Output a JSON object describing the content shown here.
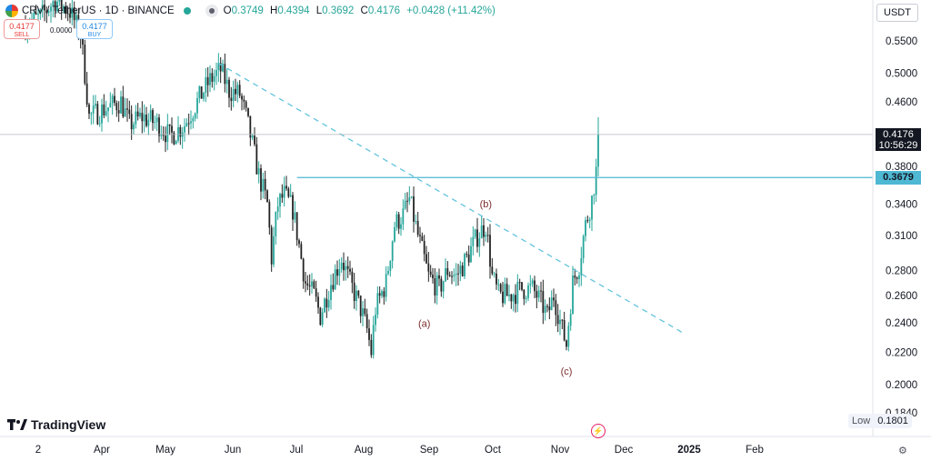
{
  "header": {
    "symbol": "CRV / TetherUS · 1D · BINANCE",
    "ohlc": [
      {
        "k": "O",
        "v": "0.3749"
      },
      {
        "k": "H",
        "v": "0.4394"
      },
      {
        "k": "L",
        "v": "0.3692"
      },
      {
        "k": "C",
        "v": "0.4176"
      }
    ],
    "change": "+0.0428 (+11.42%)"
  },
  "trade": {
    "sell_price": "0.4177",
    "sell_label": "SELL",
    "spread": "0.0000",
    "buy_price": "0.4177",
    "buy_label": "BUY"
  },
  "currency": "USDT",
  "brand": "TradingView",
  "colors": {
    "up": "#26a69a",
    "down": "#222222",
    "level_line": "#4fb8d3",
    "trendline": "#63c3dc",
    "price_tag": "#131722"
  },
  "chart_data": {
    "type": "candlestick",
    "y_scale": "log",
    "ylim": [
      0.175,
      0.62
    ],
    "y_ticks": [
      "0.5500",
      "0.5000",
      "0.4600",
      "0.3800",
      "0.3400",
      "0.3100",
      "0.2800",
      "0.2600",
      "0.2400",
      "0.2200",
      "0.2000",
      "0.1840"
    ],
    "x_ticks": [
      "2",
      "Apr",
      "May",
      "Jun",
      "Jul",
      "Aug",
      "Sep",
      "Oct",
      "Nov",
      "Dec",
      "2025",
      "Feb"
    ],
    "last_price": "0.4176",
    "countdown": "10:56:29",
    "horizontal_level": "0.3679",
    "low_label": "Low",
    "low_value": "0.1801",
    "trendline": {
      "from": [
        "2024-05-26",
        0.515
      ],
      "to": [
        "2025-01-01",
        0.232
      ]
    },
    "wave_labels": [
      {
        "text": "(a)",
        "date": "2024-08-31",
        "price": 0.237
      },
      {
        "text": "(b)",
        "date": "2024-09-29",
        "price": 0.337
      },
      {
        "text": "(c)",
        "date": "2024-11-06",
        "price": 0.206
      }
    ],
    "path": [
      [
        "2024-02-24",
        0.575
      ],
      [
        "2024-03-03",
        0.59
      ],
      [
        "2024-03-10",
        0.62
      ],
      [
        "2024-03-17",
        0.6
      ],
      [
        "2024-03-22",
        0.56
      ],
      [
        "2024-03-26",
        0.44
      ],
      [
        "2024-04-02",
        0.45
      ],
      [
        "2024-04-10",
        0.46
      ],
      [
        "2024-04-14",
        0.43
      ],
      [
        "2024-04-20",
        0.44
      ],
      [
        "2024-04-28",
        0.43
      ],
      [
        "2024-05-03",
        0.415
      ],
      [
        "2024-05-10",
        0.43
      ],
      [
        "2024-05-15",
        0.455
      ],
      [
        "2024-05-22",
        0.49
      ],
      [
        "2024-05-27",
        0.505
      ],
      [
        "2024-05-31",
        0.475
      ],
      [
        "2024-06-05",
        0.47
      ],
      [
        "2024-06-08",
        0.44
      ],
      [
        "2024-06-14",
        0.37
      ],
      [
        "2024-06-18",
        0.34
      ],
      [
        "2024-06-20",
        0.29
      ],
      [
        "2024-06-23",
        0.34
      ],
      [
        "2024-06-26",
        0.35
      ],
      [
        "2024-06-30",
        0.335
      ],
      [
        "2024-07-04",
        0.29
      ],
      [
        "2024-07-06",
        0.27
      ],
      [
        "2024-07-10",
        0.26
      ],
      [
        "2024-07-13",
        0.245
      ],
      [
        "2024-07-18",
        0.27
      ],
      [
        "2024-07-23",
        0.29
      ],
      [
        "2024-07-27",
        0.27
      ],
      [
        "2024-08-01",
        0.25
      ],
      [
        "2024-08-04",
        0.235
      ],
      [
        "2024-08-06",
        0.22
      ],
      [
        "2024-08-08",
        0.25
      ],
      [
        "2024-08-13",
        0.27
      ],
      [
        "2024-08-17",
        0.32
      ],
      [
        "2024-08-21",
        0.33
      ],
      [
        "2024-08-24",
        0.345
      ],
      [
        "2024-08-28",
        0.31
      ],
      [
        "2024-09-02",
        0.275
      ],
      [
        "2024-09-07",
        0.265
      ],
      [
        "2024-09-11",
        0.28
      ],
      [
        "2024-09-15",
        0.275
      ],
      [
        "2024-09-20",
        0.29
      ],
      [
        "2024-09-25",
        0.31
      ],
      [
        "2024-09-29",
        0.32
      ],
      [
        "2024-10-02",
        0.275
      ],
      [
        "2024-10-05",
        0.26
      ],
      [
        "2024-10-10",
        0.26
      ],
      [
        "2024-10-16",
        0.265
      ],
      [
        "2024-10-21",
        0.265
      ],
      [
        "2024-10-25",
        0.255
      ],
      [
        "2024-10-28",
        0.245
      ],
      [
        "2024-10-31",
        0.26
      ],
      [
        "2024-11-04",
        0.235
      ],
      [
        "2024-11-06",
        0.225
      ],
      [
        "2024-11-09",
        0.27
      ],
      [
        "2024-11-12",
        0.285
      ],
      [
        "2024-11-15",
        0.32
      ],
      [
        "2024-11-18",
        0.345
      ],
      [
        "2024-11-20",
        0.375
      ],
      [
        "2024-11-21",
        0.4176
      ]
    ]
  }
}
